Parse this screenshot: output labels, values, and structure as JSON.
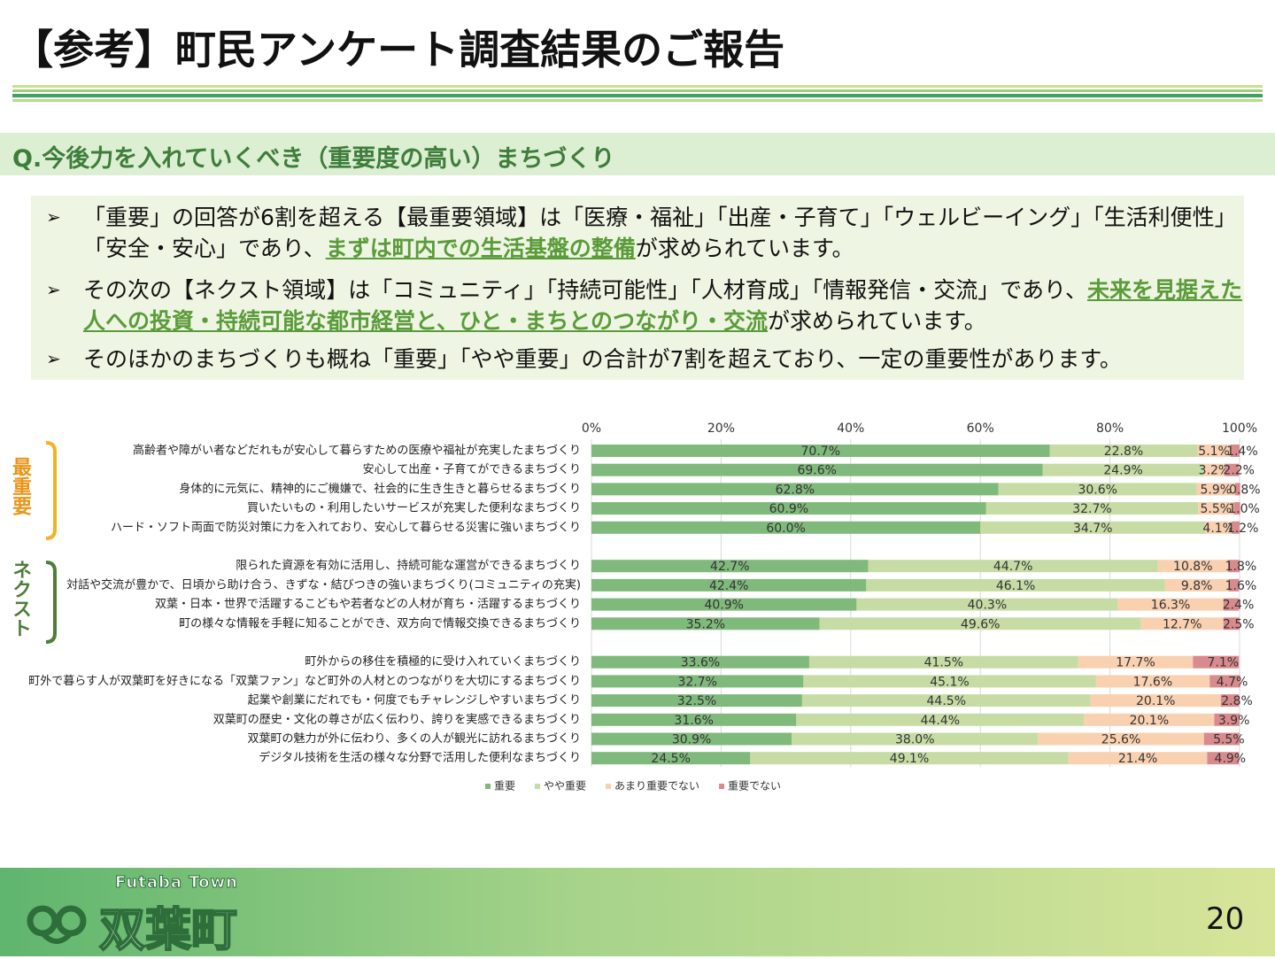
{
  "header": {
    "title": "【参考】町民アンケート調査結果のご報告"
  },
  "section": {
    "heading": "Q.今後力を入れていくべき（重要度の高い）まちづくり"
  },
  "bullets": [
    [
      "「重要」の回答が6割を超える【最重要領域】は「医療・福祉」「出産・子育て」「ウェルビーイング」「生活利便性」「安全・安心」であり、",
      "まずは町内での生活基盤の整備",
      "が求められています。"
    ],
    [
      "その次の【ネクスト領域】は「コミュニティ」「持続可能性」「人材育成」「情報発信・交流」であり、",
      "未来を見据えた人への投資・持続可能な都市経営と、ひと・まちとのつながり・交流",
      "が求められています。"
    ],
    [
      "そのほかのまちづくりも概ね「重要」「やや重要」の合計が7割を超えており、一定の重要性があります。"
    ]
  ],
  "chart_data": {
    "type": "stacked-bar-horizontal",
    "group_labels": [
      "最重要",
      "ネクスト"
    ],
    "categories": [
      "高齢者や障がい者などだれもが安心して暮らすための医療や福祉が充実したまちづくり",
      "安心して出産・子育てができるまちづくり",
      "身体的に元気に、精神的にご機嫌で、社会的に生き生きと暮らせるまちづくり",
      "買いたいもの・利用したいサービスが充実した便利なまちづくり",
      "ハード・ソフト両面で防災対策に力を入れており、安心して暮らせる災害に強いまちづくり",
      null,
      "限られた資源を有効に活用し、持続可能な運営ができるまちづくり",
      "対話や交流が豊かで、日頃から助け合う、きずな・結びつきの強いまちづくり(コミュニティの充実)",
      "双葉・日本・世界で活躍するこどもや若者などの人材が育ち・活躍するまちづくり",
      "町の様々な情報を手軽に知ることができ、双方向で情報交換できるまちづくり",
      null,
      "町外からの移住を積極的に受け入れていくまちづくり",
      "町外で暮らす人が双葉町を好きになる「双葉ファン」など町外の人材とのつながりを大切にするまちづくり",
      "起業や創業にだれでも・何度でもチャレンジしやすいまちづくり",
      "双葉町の歴史・文化の尊さが広く伝わり、誇りを実感できるまちづくり",
      "双葉町の魅力が外に伝わり、多くの人が観光に訪れるまちづくり",
      "デジタル技術を生活の様々な分野で活用した便利なまちづくり"
    ],
    "series": [
      {
        "name": "重要",
        "color": "#7fb97b",
        "values": [
          70.7,
          69.6,
          62.8,
          60.9,
          60.0,
          null,
          42.7,
          42.4,
          40.9,
          35.2,
          null,
          33.6,
          32.7,
          32.5,
          31.6,
          30.9,
          24.5
        ],
        "value_labels": [
          "70.7%",
          "69.6%",
          "62.8%",
          "60.9%",
          "60.0%",
          null,
          "42.7%",
          "42.4%",
          "40.9%",
          "35.2%",
          null,
          "33.6%",
          "32.7%",
          "32.5%",
          "31.6%",
          "30.9%",
          "24.5%"
        ]
      },
      {
        "name": "やや重要",
        "color": "#c6dca4",
        "values": [
          22.8,
          24.9,
          30.6,
          32.7,
          34.7,
          null,
          44.7,
          46.1,
          40.3,
          49.6,
          null,
          41.5,
          45.1,
          44.5,
          44.4,
          38.0,
          49.1
        ],
        "value_labels": [
          "22.8%",
          "24.9%",
          "30.6%",
          "32.7%",
          "34.7%",
          null,
          "44.7%",
          "46.1%",
          "40.3%",
          "49.6%",
          null,
          "41.5%",
          "45.1%",
          "44.5%",
          "44.4%",
          "38.0%",
          "49.1%"
        ]
      },
      {
        "name": "あまり重要でない",
        "color": "#f9d0b0",
        "values": [
          5.1,
          3.2,
          5.9,
          5.5,
          4.1,
          null,
          10.8,
          9.8,
          16.3,
          12.7,
          null,
          17.7,
          17.6,
          20.1,
          20.1,
          25.6,
          21.4
        ],
        "value_labels": [
          "5.1%",
          "3.2%",
          "5.9%",
          "5.5%",
          "4.1%",
          null,
          "10.8%",
          "9.8%",
          "16.3%",
          "12.7%",
          null,
          "17.7%",
          "17.6%",
          "20.1%",
          "20.1%",
          "25.6%",
          "21.4%"
        ]
      },
      {
        "name": "重要でない",
        "color": "#d98a8c",
        "values": [
          1.4,
          2.2,
          0.8,
          1.0,
          1.2,
          null,
          1.8,
          1.6,
          2.4,
          2.5,
          null,
          7.1,
          4.7,
          2.8,
          3.9,
          5.5,
          4.9
        ],
        "value_labels": [
          "1.4%",
          "2.2%",
          "0.8%",
          "1.0%",
          "1.2%",
          null,
          "1.8%",
          "1.6%",
          "2.4%",
          "2.5%",
          null,
          "7.1%",
          "4.7%",
          "2.8%",
          "3.9%",
          "5.5%",
          "4.9%"
        ]
      }
    ],
    "xlim": [
      0,
      100
    ],
    "xticks": [
      {
        "value": 0,
        "label": "0%"
      },
      {
        "value": 20,
        "label": "20%"
      },
      {
        "value": 40,
        "label": "40%"
      },
      {
        "value": 60,
        "label": "60%"
      },
      {
        "value": 80,
        "label": "80%"
      },
      {
        "value": 100,
        "label": "100%"
      }
    ],
    "grid": true,
    "legend": "bottom"
  },
  "footer": {
    "brand_en": "Futaba Town",
    "brand": "双葉町",
    "page": "20"
  }
}
